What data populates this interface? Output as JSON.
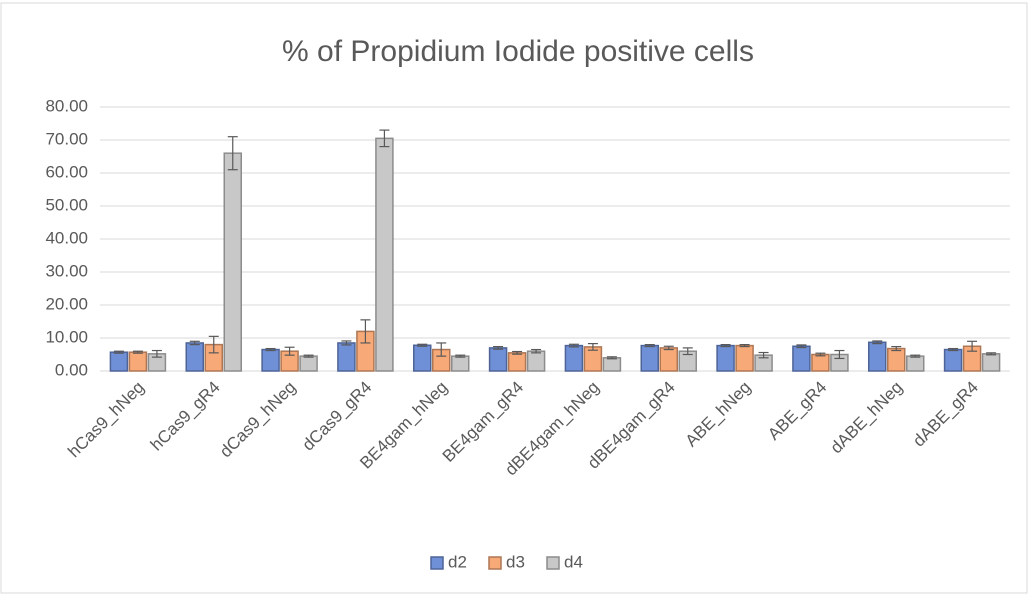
{
  "chart_data": {
    "type": "bar",
    "title": "% of Propidium Iodide positive cells",
    "categories": [
      "hCas9_hNeg",
      "hCas9_gR4",
      "dCas9_hNeg",
      "dCas9_gR4",
      "BE4gam_hNeg",
      "BE4gam_gR4",
      "dBE4gam_hNeg",
      "dBE4gam_gR4",
      "ABE_hNeg",
      "ABE_gR4",
      "dABE_hNeg",
      "dABE_gR4"
    ],
    "series": [
      {
        "name": "d2",
        "color": "#6f8fd6",
        "values": [
          5.7,
          8.5,
          6.5,
          8.5,
          7.8,
          7.0,
          7.7,
          7.7,
          7.7,
          7.5,
          8.7,
          6.5
        ],
        "errors": [
          0.3,
          0.5,
          0.3,
          0.6,
          0.3,
          0.4,
          0.4,
          0.3,
          0.3,
          0.4,
          0.4,
          0.3
        ]
      },
      {
        "name": "d3",
        "color": "#f7a978",
        "values": [
          5.7,
          8.0,
          6.0,
          12.0,
          6.5,
          5.5,
          7.3,
          7.0,
          7.7,
          5.0,
          6.8,
          7.5
        ],
        "errors": [
          0.3,
          2.5,
          1.2,
          3.5,
          2.0,
          0.4,
          1.0,
          0.5,
          0.3,
          0.4,
          0.6,
          1.5
        ]
      },
      {
        "name": "d4",
        "color": "#c8c8c8",
        "values": [
          5.2,
          66.0,
          4.5,
          70.5,
          4.5,
          6.0,
          4.0,
          6.0,
          4.8,
          5.0,
          4.5,
          5.2
        ],
        "errors": [
          1.0,
          5.0,
          0.3,
          2.5,
          0.3,
          0.5,
          0.3,
          1.0,
          0.8,
          1.2,
          0.3,
          0.3
        ]
      }
    ],
    "ylim": [
      0,
      80
    ],
    "yticks": [
      {
        "value": 0,
        "label": "0.00"
      },
      {
        "value": 10,
        "label": "10.00"
      },
      {
        "value": 20,
        "label": "20.00"
      },
      {
        "value": 30,
        "label": "30.00"
      },
      {
        "value": 40,
        "label": "40.00"
      },
      {
        "value": 50,
        "label": "50.00"
      },
      {
        "value": 60,
        "label": "60.00"
      },
      {
        "value": 70,
        "label": "70.00"
      },
      {
        "value": 80,
        "label": "80.00"
      }
    ],
    "grid": true,
    "legend": "bottom"
  }
}
